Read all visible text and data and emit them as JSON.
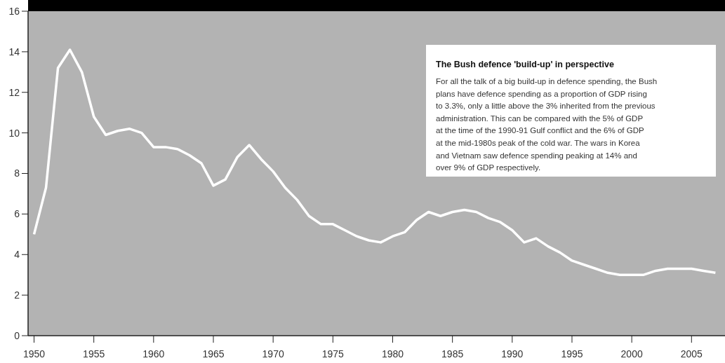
{
  "chart_data": {
    "type": "line",
    "x": [
      1950,
      1951,
      1952,
      1953,
      1954,
      1955,
      1956,
      1957,
      1958,
      1959,
      1960,
      1961,
      1962,
      1963,
      1964,
      1965,
      1966,
      1967,
      1968,
      1969,
      1970,
      1971,
      1972,
      1973,
      1974,
      1975,
      1976,
      1977,
      1978,
      1979,
      1980,
      1981,
      1982,
      1983,
      1984,
      1985,
      1986,
      1987,
      1988,
      1989,
      1990,
      1991,
      1992,
      1993,
      1994,
      1995,
      1996,
      1997,
      1998,
      1999,
      2000,
      2001,
      2002,
      2003,
      2004,
      2005,
      2006,
      2007
    ],
    "series": [
      {
        "color": "#ffffff",
        "values": [
          5.0,
          7.3,
          13.2,
          14.1,
          13.0,
          10.8,
          9.9,
          10.1,
          10.2,
          10.0,
          9.3,
          9.3,
          9.2,
          8.9,
          8.5,
          7.4,
          7.7,
          8.8,
          9.4,
          8.7,
          8.1,
          7.3,
          6.7,
          5.9,
          5.5,
          5.5,
          5.2,
          4.9,
          4.7,
          4.6,
          4.9,
          5.1,
          5.7,
          6.1,
          5.9,
          6.1,
          6.2,
          6.1,
          5.8,
          5.6,
          5.2,
          4.6,
          4.8,
          4.4,
          4.1,
          3.7,
          3.5,
          3.3,
          3.1,
          3.0,
          3.0,
          3.0,
          3.2,
          3.3,
          3.3,
          3.3,
          3.2,
          3.1
        ]
      }
    ],
    "xlim": [
      1949.5,
      2007.8
    ],
    "xticks": [
      1950,
      1955,
      1960,
      1965,
      1970,
      1975,
      1980,
      1985,
      1990,
      1995,
      2000,
      2005
    ],
    "ylim": [
      0,
      16
    ],
    "yticks": [
      0,
      2,
      4,
      6,
      8,
      10,
      12,
      14,
      16
    ],
    "grid": false,
    "marker": "none",
    "line_style": "solid",
    "annotations": [
      "The Bush defence 'build-up' in perspective",
      "For all the talk of a big build-up in defence spending, the Bush\nplans have defence spending as a proportion of GDP rising\nto 3.3%, only a little above the 3% inherited from the previous\nadministration. This can be compared with the 5% of GDP\nat the time of the 1990-91 Gulf conflict and the 6% of GDP\nat the mid-1980s peak of the cold war. The wars in Korea\nand Vietnam saw defence spending peaking at 14% and\nover 9%  of GDP respectively."
    ]
  }
}
